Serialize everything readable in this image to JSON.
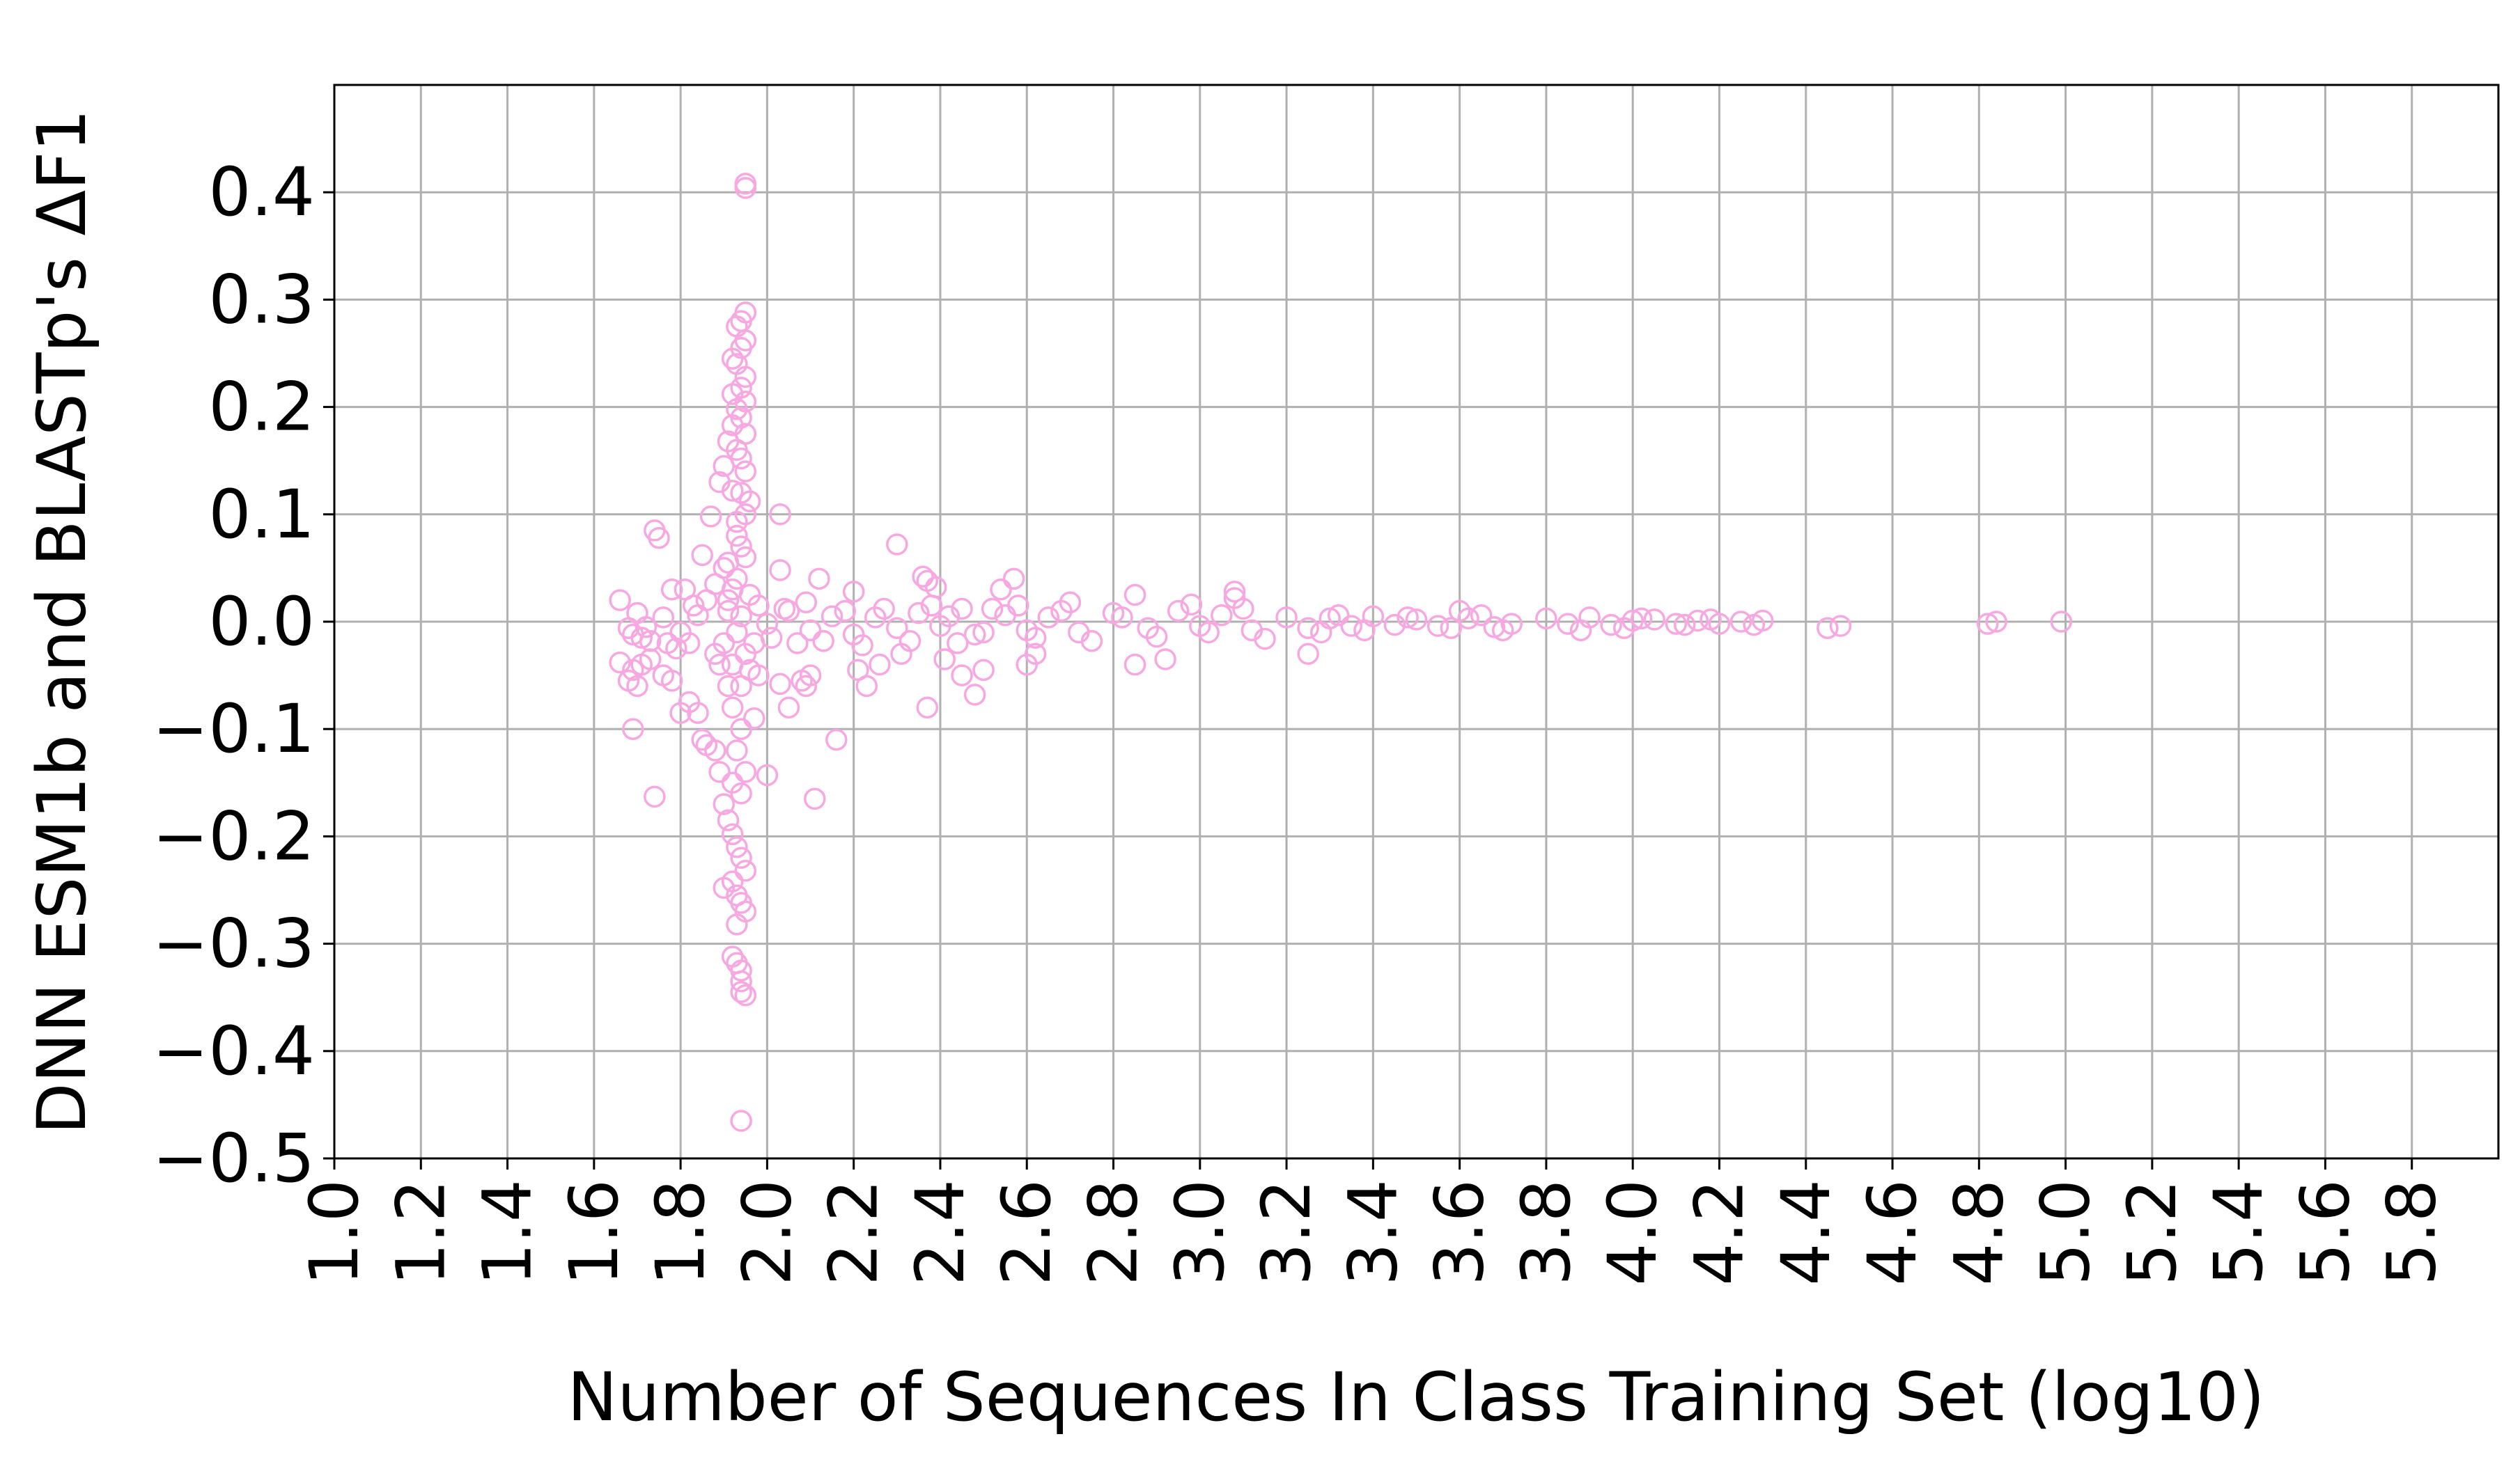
{
  "chart_data": {
    "type": "scatter",
    "title": "",
    "xlabel": "Number of Sequences In Class Training Set (log10)",
    "ylabel": "DNN ESM1b and BLASTp's ΔF1",
    "xlim": [
      1.0,
      6.0
    ],
    "ylim": [
      -0.5,
      0.5
    ],
    "xticks": [
      1.0,
      1.2,
      1.4,
      1.6,
      1.8,
      2.0,
      2.2,
      2.4,
      2.6,
      2.8,
      3.0,
      3.2,
      3.4,
      3.6,
      3.8,
      4.0,
      4.2,
      4.4,
      4.6,
      4.8,
      5.0,
      5.2,
      5.4,
      5.6,
      5.8
    ],
    "xtick_labels": [
      "1.0",
      "1.2",
      "1.4",
      "1.6",
      "1.8",
      "2.0",
      "2.2",
      "2.4",
      "2.6",
      "2.8",
      "3.0",
      "3.2",
      "3.4",
      "3.6",
      "3.8",
      "4.0",
      "4.2",
      "4.4",
      "4.6",
      "4.8",
      "5.0",
      "5.2",
      "5.4",
      "5.6",
      "5.8"
    ],
    "yticks": [
      -0.5,
      -0.4,
      -0.3,
      -0.2,
      -0.1,
      0.0,
      0.1,
      0.2,
      0.3,
      0.4
    ],
    "ytick_labels": [
      "−0.5",
      "−0.4",
      "−0.3",
      "−0.2",
      "−0.1",
      "0.0",
      "0.1",
      "0.2",
      "0.3",
      "0.4"
    ],
    "grid": true,
    "marker": "open-circle",
    "marker_color": "#f7a8e0",
    "series": [
      {
        "points": [
          [
            1.95,
            0.408
          ],
          [
            1.95,
            0.404
          ],
          [
            1.95,
            0.288
          ],
          [
            1.94,
            0.28
          ],
          [
            1.93,
            0.275
          ],
          [
            1.95,
            0.262
          ],
          [
            1.94,
            0.255
          ],
          [
            1.92,
            0.245
          ],
          [
            1.93,
            0.24
          ],
          [
            1.95,
            0.228
          ],
          [
            1.94,
            0.218
          ],
          [
            1.92,
            0.212
          ],
          [
            1.95,
            0.205
          ],
          [
            1.93,
            0.198
          ],
          [
            1.94,
            0.19
          ],
          [
            1.92,
            0.183
          ],
          [
            1.95,
            0.175
          ],
          [
            1.91,
            0.168
          ],
          [
            1.93,
            0.16
          ],
          [
            1.94,
            0.152
          ],
          [
            1.9,
            0.145
          ],
          [
            1.95,
            0.14
          ],
          [
            1.89,
            0.13
          ],
          [
            1.92,
            0.122
          ],
          [
            1.96,
            0.112
          ],
          [
            2.03,
            0.1
          ],
          [
            1.87,
            0.098
          ],
          [
            1.93,
            0.093
          ],
          [
            1.74,
            0.085
          ],
          [
            1.75,
            0.078
          ],
          [
            2.3,
            0.072
          ],
          [
            1.94,
            0.07
          ],
          [
            1.85,
            0.062
          ],
          [
            1.91,
            0.055
          ],
          [
            2.03,
            0.048
          ],
          [
            2.36,
            0.042
          ],
          [
            2.37,
            0.038
          ],
          [
            1.88,
            0.035
          ],
          [
            2.57,
            0.04
          ],
          [
            2.54,
            0.03
          ],
          [
            2.39,
            0.032
          ],
          [
            1.78,
            0.03
          ],
          [
            1.81,
            0.03
          ],
          [
            2.2,
            0.028
          ],
          [
            2.12,
            0.04
          ],
          [
            2.7,
            0.018
          ],
          [
            2.85,
            0.025
          ],
          [
            3.08,
            0.028
          ],
          [
            3.08,
            0.022
          ],
          [
            3.6,
            0.01
          ],
          [
            1.66,
            0.02
          ],
          [
            1.7,
            0.008
          ],
          [
            1.72,
            -0.005
          ],
          [
            1.76,
            0.004
          ],
          [
            1.8,
            -0.01
          ],
          [
            1.84,
            0.006
          ],
          [
            2.0,
            -0.002
          ],
          [
            2.05,
            0.01
          ],
          [
            2.1,
            -0.008
          ],
          [
            2.15,
            0.005
          ],
          [
            2.2,
            -0.012
          ],
          [
            2.25,
            0.004
          ],
          [
            2.3,
            -0.006
          ],
          [
            2.35,
            0.008
          ],
          [
            2.4,
            -0.004
          ],
          [
            2.45,
            0.012
          ],
          [
            2.5,
            -0.01
          ],
          [
            2.55,
            0.006
          ],
          [
            2.6,
            -0.008
          ],
          [
            2.65,
            0.004
          ],
          [
            2.72,
            -0.01
          ],
          [
            2.8,
            0.008
          ],
          [
            2.88,
            -0.006
          ],
          [
            2.95,
            0.01
          ],
          [
            3.0,
            -0.004
          ],
          [
            3.05,
            0.006
          ],
          [
            3.12,
            -0.008
          ],
          [
            3.2,
            0.004
          ],
          [
            3.25,
            -0.006
          ],
          [
            3.3,
            0.003
          ],
          [
            3.35,
            -0.004
          ],
          [
            3.4,
            0.005
          ],
          [
            3.45,
            -0.003
          ],
          [
            3.5,
            0.002
          ],
          [
            3.55,
            -0.004
          ],
          [
            3.62,
            0.003
          ],
          [
            3.68,
            -0.005
          ],
          [
            3.72,
            -0.002
          ],
          [
            3.8,
            0.003
          ],
          [
            3.85,
            -0.002
          ],
          [
            3.9,
            0.004
          ],
          [
            3.95,
            -0.003
          ],
          [
            4.0,
            0.001
          ],
          [
            4.05,
            0.002
          ],
          [
            4.1,
            -0.002
          ],
          [
            4.15,
            0.001
          ],
          [
            4.2,
            -0.002
          ],
          [
            4.25,
            0.0
          ],
          [
            4.3,
            0.001
          ],
          [
            4.45,
            -0.006
          ],
          [
            4.48,
            -0.004
          ],
          [
            4.82,
            -0.002
          ],
          [
            4.84,
            0.0
          ],
          [
            4.99,
            0.0
          ],
          [
            2.42,
            0.005
          ],
          [
            2.48,
            -0.012
          ],
          [
            2.58,
            0.015
          ],
          [
            2.62,
            -0.015
          ],
          [
            2.68,
            0.01
          ],
          [
            2.75,
            -0.018
          ],
          [
            2.82,
            0.004
          ],
          [
            2.9,
            -0.014
          ],
          [
            2.98,
            0.016
          ],
          [
            3.02,
            -0.01
          ],
          [
            3.1,
            0.012
          ],
          [
            3.15,
            -0.016
          ],
          [
            3.28,
            -0.01
          ],
          [
            3.32,
            0.006
          ],
          [
            3.38,
            -0.008
          ],
          [
            3.48,
            0.004
          ],
          [
            3.58,
            -0.006
          ],
          [
            3.65,
            0.006
          ],
          [
            3.7,
            -0.008
          ],
          [
            3.88,
            -0.008
          ],
          [
            3.98,
            -0.006
          ],
          [
            4.02,
            0.003
          ],
          [
            4.12,
            -0.003
          ],
          [
            4.18,
            0.002
          ],
          [
            4.28,
            -0.003
          ],
          [
            1.68,
            -0.006
          ],
          [
            1.69,
            -0.012
          ],
          [
            1.71,
            -0.015
          ],
          [
            1.73,
            -0.018
          ],
          [
            1.77,
            -0.02
          ],
          [
            1.79,
            -0.025
          ],
          [
            1.82,
            -0.02
          ],
          [
            1.83,
            0.015
          ],
          [
            1.86,
            0.02
          ],
          [
            1.88,
            -0.03
          ],
          [
            1.97,
            -0.02
          ],
          [
            1.98,
            0.015
          ],
          [
            2.01,
            -0.015
          ],
          [
            2.04,
            0.012
          ],
          [
            2.07,
            -0.02
          ],
          [
            2.09,
            0.018
          ],
          [
            2.13,
            -0.018
          ],
          [
            2.18,
            0.01
          ],
          [
            2.22,
            -0.022
          ],
          [
            2.27,
            0.012
          ],
          [
            2.33,
            -0.018
          ],
          [
            2.38,
            0.015
          ],
          [
            2.44,
            -0.02
          ],
          [
            2.52,
            0.012
          ],
          [
            1.66,
            -0.038
          ],
          [
            1.68,
            -0.055
          ],
          [
            1.69,
            -0.045
          ],
          [
            1.7,
            -0.06
          ],
          [
            1.71,
            -0.04
          ],
          [
            1.73,
            -0.035
          ],
          [
            1.76,
            -0.05
          ],
          [
            1.78,
            -0.055
          ],
          [
            1.8,
            -0.085
          ],
          [
            1.82,
            -0.075
          ],
          [
            1.84,
            -0.085
          ],
          [
            1.85,
            -0.11
          ],
          [
            1.86,
            -0.115
          ],
          [
            1.88,
            -0.12
          ],
          [
            1.89,
            -0.14
          ],
          [
            1.97,
            -0.09
          ],
          [
            1.98,
            -0.05
          ],
          [
            2.03,
            -0.058
          ],
          [
            2.05,
            -0.08
          ],
          [
            2.08,
            -0.055
          ],
          [
            2.09,
            -0.06
          ],
          [
            2.1,
            -0.05
          ],
          [
            2.16,
            -0.11
          ],
          [
            2.21,
            -0.045
          ],
          [
            2.23,
            -0.06
          ],
          [
            2.26,
            -0.04
          ],
          [
            2.31,
            -0.03
          ],
          [
            2.37,
            -0.08
          ],
          [
            2.41,
            -0.035
          ],
          [
            2.45,
            -0.05
          ],
          [
            2.48,
            -0.068
          ],
          [
            2.5,
            -0.045
          ],
          [
            2.6,
            -0.04
          ],
          [
            2.62,
            -0.03
          ],
          [
            2.85,
            -0.04
          ],
          [
            2.92,
            -0.035
          ],
          [
            3.25,
            -0.03
          ],
          [
            1.69,
            -0.1
          ],
          [
            1.74,
            -0.163
          ],
          [
            2.0,
            -0.143
          ],
          [
            2.11,
            -0.165
          ],
          [
            1.9,
            -0.17
          ],
          [
            1.91,
            -0.185
          ],
          [
            1.92,
            -0.198
          ],
          [
            1.93,
            -0.21
          ],
          [
            1.94,
            -0.22
          ],
          [
            1.95,
            -0.232
          ],
          [
            1.92,
            -0.242
          ],
          [
            1.9,
            -0.248
          ],
          [
            1.93,
            -0.255
          ],
          [
            1.94,
            -0.262
          ],
          [
            1.95,
            -0.27
          ],
          [
            1.93,
            -0.282
          ],
          [
            1.92,
            -0.312
          ],
          [
            1.93,
            -0.318
          ],
          [
            1.94,
            -0.325
          ],
          [
            1.94,
            -0.335
          ],
          [
            1.94,
            -0.345
          ],
          [
            1.95,
            -0.348
          ],
          [
            1.94,
            -0.465
          ],
          [
            1.9,
            -0.02
          ],
          [
            1.91,
            0.02
          ],
          [
            1.92,
            -0.04
          ],
          [
            1.93,
            0.04
          ],
          [
            1.94,
            -0.06
          ],
          [
            1.95,
            0.06
          ],
          [
            1.92,
            -0.08
          ],
          [
            1.93,
            0.08
          ],
          [
            1.94,
            -0.1
          ],
          [
            1.95,
            0.1
          ],
          [
            1.93,
            -0.12
          ],
          [
            1.94,
            0.12
          ],
          [
            1.95,
            -0.14
          ],
          [
            1.92,
            -0.15
          ],
          [
            1.94,
            -0.16
          ],
          [
            1.91,
            0.01
          ],
          [
            1.92,
            0.03
          ],
          [
            1.93,
            -0.01
          ],
          [
            1.94,
            0.005
          ],
          [
            1.95,
            -0.03
          ],
          [
            1.96,
            0.025
          ],
          [
            1.96,
            -0.045
          ],
          [
            1.91,
            -0.06
          ],
          [
            1.9,
            0.05
          ],
          [
            1.89,
            -0.04
          ]
        ]
      }
    ]
  }
}
